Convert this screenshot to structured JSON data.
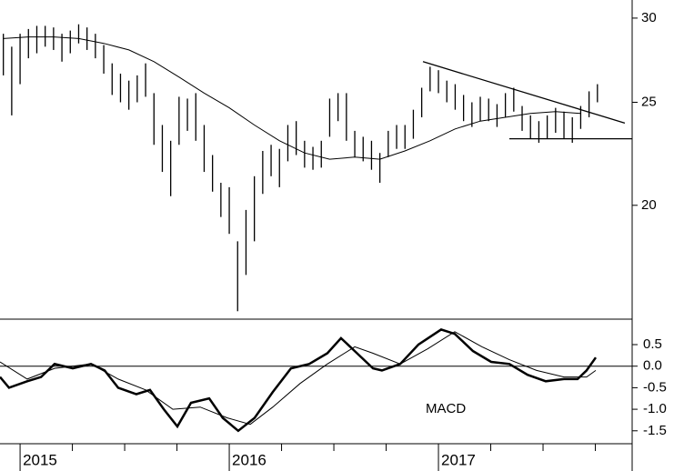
{
  "chart_data": [
    {
      "type": "ohlc",
      "log_scale": true,
      "ylim": [
        15.66,
        31.2
      ],
      "yticks": [
        20,
        25,
        30
      ],
      "xlim": [
        2014.904,
        2017.926
      ],
      "color": "#000000",
      "x": [
        2014.92,
        2014.96,
        2015.0,
        2015.04,
        2015.08,
        2015.12,
        2015.16,
        2015.2,
        2015.24,
        2015.28,
        2015.32,
        2015.36,
        2015.4,
        2015.44,
        2015.48,
        2015.52,
        2015.56,
        2015.6,
        2015.64,
        2015.68,
        2015.72,
        2015.76,
        2015.8,
        2015.84,
        2015.88,
        2015.92,
        2015.96,
        2016.0,
        2016.04,
        2016.08,
        2016.12,
        2016.16,
        2016.2,
        2016.24,
        2016.28,
        2016.32,
        2016.36,
        2016.4,
        2016.44,
        2016.48,
        2016.52,
        2016.56,
        2016.6,
        2016.64,
        2016.68,
        2016.72,
        2016.76,
        2016.8,
        2016.84,
        2016.88,
        2016.92,
        2016.96,
        2017.0,
        2017.04,
        2017.08,
        2017.12,
        2017.16,
        2017.2,
        2017.24,
        2017.28,
        2017.32,
        2017.36,
        2017.4,
        2017.44,
        2017.48,
        2017.52,
        2017.56,
        2017.6,
        2017.64,
        2017.68,
        2017.72,
        2017.76
      ],
      "high": [
        29,
        28.2,
        29,
        29.3,
        29.5,
        29.5,
        29.4,
        29,
        29.2,
        29.6,
        29.4,
        29,
        28.3,
        27.2,
        26.6,
        26.2,
        26.5,
        27.2,
        25.5,
        23.8,
        23,
        25.3,
        25.2,
        25.5,
        23.8,
        22.3,
        21,
        20.8,
        18.5,
        19.8,
        21.3,
        22.5,
        22.8,
        22.6,
        23.8,
        24,
        23,
        22.7,
        23,
        25.2,
        25.5,
        25.5,
        23.5,
        23.2,
        23,
        22.4,
        23.5,
        23.8,
        23.8,
        24.6,
        25.8,
        27,
        26.8,
        26.2,
        26,
        25.4,
        25,
        25.3,
        25.2,
        24.9,
        25.5,
        25.8,
        24.8,
        24.3,
        24,
        24.3,
        24.7,
        24.5,
        24.2,
        24.8,
        25.6,
        26
      ],
      "low": [
        26.5,
        24.3,
        26,
        27.5,
        27.8,
        28.2,
        28,
        27.3,
        27.8,
        28.4,
        28,
        27.5,
        26.6,
        25.4,
        25,
        24.6,
        25,
        25.3,
        22.8,
        21.5,
        20.4,
        22.8,
        23.5,
        23,
        21.5,
        20.6,
        19.5,
        18.8,
        15.9,
        17.2,
        18.5,
        20.5,
        21.3,
        20.8,
        22,
        22.3,
        21.7,
        21.6,
        21.7,
        23.2,
        24,
        23,
        22.2,
        22,
        21.6,
        21,
        22.2,
        22.6,
        22.6,
        23.1,
        24.2,
        25.6,
        25.5,
        25,
        24.6,
        24,
        23.7,
        24,
        24,
        23.7,
        24.2,
        24.5,
        23.5,
        23.1,
        22.9,
        23.1,
        23.4,
        23.1,
        22.9,
        23.6,
        24.2,
        25
      ],
      "ma": {
        "x": [
          2014.92,
          2015.04,
          2015.16,
          2015.28,
          2015.4,
          2015.52,
          2015.64,
          2015.76,
          2015.88,
          2016.0,
          2016.12,
          2016.24,
          2016.36,
          2016.48,
          2016.6,
          2016.72,
          2016.84,
          2016.96,
          2017.08,
          2017.2,
          2017.32,
          2017.44,
          2017.56,
          2017.68
        ],
        "values": [
          28.7,
          28.8,
          28.8,
          28.7,
          28.4,
          28.0,
          27.3,
          26.4,
          25.5,
          24.7,
          23.8,
          23.0,
          22.4,
          22.1,
          22.2,
          22.1,
          22.5,
          23.0,
          23.6,
          24.0,
          24.2,
          24.4,
          24.5,
          24.4
        ]
      },
      "trendlines": [
        {
          "x": [
            2016.926,
            2017.891
          ],
          "y": [
            27.3,
            23.9
          ]
        },
        {
          "x": [
            2017.339,
            2017.926
          ],
          "y": [
            23.1,
            23.1
          ]
        }
      ]
    },
    {
      "type": "line",
      "title": "MACD",
      "ylim": [
        -1.8,
        1.07
      ],
      "yticks": [
        0.5,
        {
          "value": 0,
          "label": "0.0"
        },
        -0.5,
        {
          "value": -1,
          "label": "-1.0"
        },
        -1.5
      ],
      "xlim": [
        2014.904,
        2017.926
      ],
      "xticks": [
        2015,
        2016,
        2017
      ],
      "xminorticks": [
        2015.25,
        2015.5,
        2015.75,
        2016.25,
        2016.5,
        2016.75,
        2017.25,
        2017.5,
        2017.75
      ],
      "series": [
        {
          "color": "#000000",
          "width": 2.5,
          "x": [
            2014.904,
            2014.947,
            2015.034,
            2015.1,
            2015.165,
            2015.252,
            2015.339,
            2015.404,
            2015.469,
            2015.556,
            2015.621,
            2015.687,
            2015.752,
            2015.817,
            2015.904,
            2015.969,
            2016.043,
            2016.121,
            2016.208,
            2016.295,
            2016.382,
            2016.469,
            2016.534,
            2016.6,
            2016.687,
            2016.73,
            2016.817,
            2016.904,
            2017.013,
            2017.078,
            2017.165,
            2017.252,
            2017.339,
            2017.426,
            2017.513,
            2017.6,
            2017.665,
            2017.708,
            2017.752
          ],
          "values": [
            -0.25,
            -0.5,
            -0.35,
            -0.25,
            0.05,
            -0.05,
            0.05,
            -0.1,
            -0.5,
            -0.65,
            -0.55,
            -1.0,
            -1.4,
            -0.85,
            -0.75,
            -1.2,
            -1.5,
            -1.2,
            -0.6,
            -0.05,
            0.05,
            0.3,
            0.65,
            0.35,
            -0.05,
            -0.1,
            0.05,
            0.5,
            0.85,
            0.75,
            0.35,
            0.1,
            0.05,
            -0.2,
            -0.35,
            -0.3,
            -0.3,
            -0.1,
            0.2
          ]
        },
        {
          "color": "#000000",
          "width": 1,
          "x": [
            2014.904,
            2015.034,
            2015.165,
            2015.339,
            2015.469,
            2015.6,
            2015.73,
            2015.861,
            2015.991,
            2016.1,
            2016.208,
            2016.339,
            2016.469,
            2016.6,
            2016.687,
            2016.817,
            2016.948,
            2017.078,
            2017.208,
            2017.339,
            2017.469,
            2017.6,
            2017.708,
            2017.752
          ],
          "values": [
            0.1,
            -0.3,
            -0.05,
            0.05,
            -0.3,
            -0.55,
            -1.0,
            -0.95,
            -1.2,
            -1.35,
            -0.95,
            -0.4,
            0.05,
            0.45,
            0.3,
            0.05,
            0.4,
            0.8,
            0.45,
            0.15,
            -0.1,
            -0.25,
            -0.25,
            -0.1
          ]
        }
      ]
    }
  ]
}
